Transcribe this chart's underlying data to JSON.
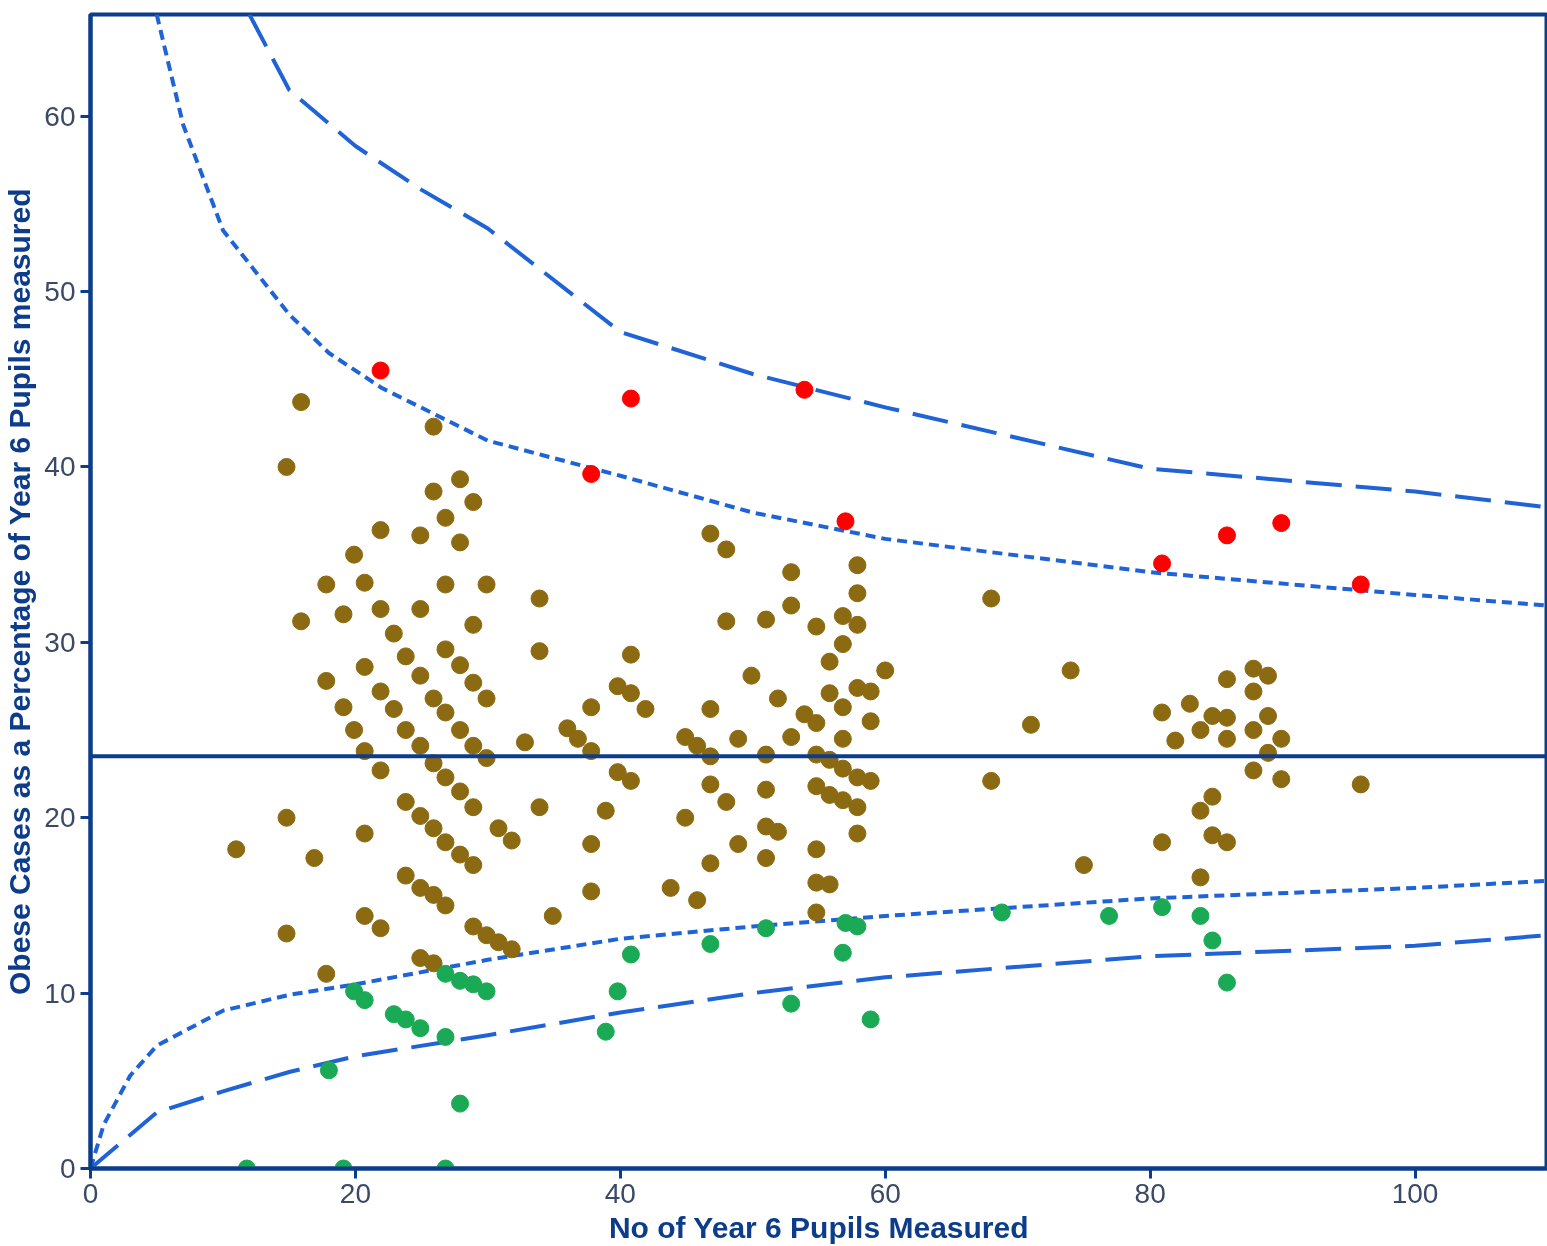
{
  "chart_data": {
    "type": "scatter",
    "xlabel": "No of Year 6 Pupils Measured",
    "ylabel": "Obese Cases as a Percentage of Year 6 Pupils measured",
    "xlim": [
      0,
      110
    ],
    "ylim": [
      0,
      65.8
    ],
    "xticks": [
      0,
      20,
      40,
      60,
      80,
      100
    ],
    "yticks": [
      0,
      10,
      20,
      30,
      40,
      50,
      60
    ],
    "grid": false,
    "marker": "circle",
    "ref_lines": [
      {
        "axis": "y",
        "value": 23.5,
        "color": "#0d3d8a",
        "line_style": "solid"
      }
    ],
    "series": [
      {
        "type": "line",
        "marker": "none",
        "color": "#1f63d6",
        "line_style": "dashed",
        "x": [
          12,
          15,
          20,
          25,
          30,
          40,
          50,
          60,
          80,
          100,
          110
        ],
        "values": [
          65.8,
          61.5,
          58.3,
          55.8,
          53.6,
          47.7,
          45.3,
          43.4,
          39.9,
          38.6,
          37.7
        ]
      },
      {
        "type": "line",
        "marker": "none",
        "color": "#1f63d6",
        "line_style": "dotted",
        "x": [
          5,
          7,
          10,
          15,
          18,
          22,
          30,
          40,
          50,
          60,
          80,
          100,
          110
        ],
        "values": [
          65.8,
          59.5,
          53.5,
          48.7,
          46.5,
          44.5,
          41.5,
          39.5,
          37.4,
          35.9,
          34.0,
          32.7,
          32.1
        ]
      },
      {
        "type": "line",
        "marker": "none",
        "color": "#1f63d6",
        "line_style": "dotted",
        "x": [
          0,
          1,
          3,
          5,
          10,
          15,
          20,
          30,
          40,
          50,
          60,
          80,
          100,
          110
        ],
        "values": [
          0,
          2.5,
          5.3,
          7.0,
          9.0,
          9.9,
          10.5,
          11.9,
          13.1,
          13.8,
          14.4,
          15.4,
          16.0,
          16.4
        ]
      },
      {
        "type": "line",
        "marker": "none",
        "color": "#1f63d6",
        "line_style": "dashed",
        "x": [
          0,
          5,
          10,
          15,
          20,
          30,
          40,
          50,
          60,
          80,
          100,
          110
        ],
        "values": [
          0,
          3.2,
          4.4,
          5.5,
          6.4,
          7.6,
          8.9,
          10.0,
          10.9,
          12.1,
          12.7,
          13.3
        ]
      },
      {
        "color": "#8c6a12",
        "x": [
          11,
          14.8,
          14.8,
          14.8,
          15.9,
          15.9,
          16.9,
          17.8,
          17.8,
          17.8,
          19.1,
          19.1,
          19.9,
          19.9,
          20.7,
          20.7,
          20.7,
          20.7,
          20.7,
          21.9,
          21.9,
          21.9,
          21.9,
          21.9,
          22.9,
          22.9,
          23.8,
          23.8,
          23.8,
          23.8,
          24.9,
          24.9,
          24.9,
          24.9,
          24.9,
          24.9,
          24.9,
          25.9,
          25.9,
          25.9,
          25.9,
          25.9,
          25.9,
          25.9,
          26.8,
          26.8,
          26.8,
          26.8,
          26.8,
          26.8,
          26.8,
          27.9,
          27.9,
          27.9,
          27.9,
          27.9,
          27.9,
          28.9,
          28.9,
          28.9,
          28.9,
          28.9,
          28.9,
          28.9,
          29.9,
          29.9,
          29.9,
          29.9,
          30.8,
          30.8,
          31.8,
          31.8,
          32.8,
          33.9,
          33.9,
          33.9,
          34.9,
          36.0,
          36.8,
          37.8,
          37.8,
          37.8,
          37.8,
          38.9,
          39.8,
          39.8,
          40.8,
          40.8,
          40.8,
          41.9,
          43.8,
          44.9,
          44.9,
          45.8,
          45.8,
          46.8,
          46.8,
          46.8,
          46.8,
          46.8,
          48.0,
          48.0,
          48.0,
          48.9,
          48.9,
          49.9,
          51.0,
          51.0,
          51.0,
          51.0,
          51.0,
          51.9,
          51.9,
          52.9,
          52.9,
          52.9,
          53.9,
          54.8,
          54.8,
          54.8,
          54.8,
          54.8,
          54.8,
          54.8,
          55.8,
          55.8,
          55.8,
          55.8,
          55.8,
          56.8,
          56.8,
          56.8,
          56.8,
          56.8,
          56.8,
          57.9,
          57.9,
          57.9,
          57.9,
          57.9,
          57.9,
          57.9,
          58.9,
          58.9,
          58.9,
          60.0,
          68.0,
          68.0,
          71.0,
          74.0,
          75.0,
          80.9,
          80.9,
          81.9,
          83.0,
          83.8,
          83.8,
          83.8,
          84.7,
          84.7,
          84.7,
          85.8,
          85.8,
          85.8,
          85.8,
          87.8,
          87.8,
          87.8,
          87.8,
          88.9,
          88.9,
          88.9,
          89.9,
          89.9,
          95.9
        ],
        "values": [
          18.2,
          40.0,
          20.0,
          13.4,
          43.7,
          31.2,
          17.7,
          33.3,
          27.8,
          11.1,
          31.6,
          26.3,
          35.0,
          25.0,
          33.4,
          28.6,
          23.8,
          19.1,
          14.4,
          36.4,
          31.9,
          27.2,
          22.7,
          13.7,
          30.5,
          26.2,
          29.2,
          25.0,
          20.9,
          16.7,
          36.1,
          31.9,
          28.1,
          24.1,
          20.1,
          16.0,
          12.0,
          42.3,
          38.6,
          26.8,
          23.1,
          19.4,
          15.6,
          11.7,
          37.1,
          33.3,
          29.6,
          26.0,
          22.3,
          18.6,
          15.0,
          39.3,
          35.7,
          28.7,
          25.0,
          21.5,
          17.9,
          38.0,
          31.0,
          27.7,
          24.1,
          20.6,
          17.3,
          13.8,
          33.3,
          26.8,
          23.4,
          13.3,
          19.4,
          12.9,
          18.7,
          12.5,
          24.3,
          32.5,
          29.5,
          20.6,
          14.4,
          25.1,
          24.5,
          23.8,
          26.3,
          18.5,
          15.8,
          20.4,
          27.5,
          22.6,
          29.3,
          27.1,
          22.1,
          26.2,
          16.0,
          24.6,
          20.0,
          24.1,
          15.3,
          36.2,
          26.2,
          23.5,
          21.9,
          17.4,
          35.3,
          31.2,
          20.9,
          24.5,
          18.5,
          28.1,
          31.3,
          23.6,
          21.6,
          19.5,
          17.7,
          26.8,
          19.2,
          34.0,
          32.1,
          24.6,
          25.9,
          30.9,
          25.4,
          23.6,
          21.8,
          18.2,
          16.3,
          14.6,
          28.9,
          27.1,
          23.3,
          21.3,
          16.2,
          31.5,
          29.9,
          26.3,
          24.5,
          22.8,
          21.0,
          34.4,
          32.8,
          31.0,
          27.4,
          22.3,
          20.6,
          19.1,
          27.2,
          25.5,
          22.1,
          28.4,
          32.5,
          22.1,
          25.3,
          28.4,
          17.3,
          26.0,
          18.6,
          24.4,
          26.5,
          25.0,
          20.4,
          16.6,
          25.8,
          21.2,
          19.0,
          27.9,
          25.7,
          24.5,
          18.6,
          28.5,
          27.2,
          25.0,
          22.7,
          28.1,
          25.8,
          23.7,
          24.5,
          22.2,
          21.9
        ]
      },
      {
        "color": "#ff0000",
        "x": [
          21.9,
          37.8,
          40.8,
          53.9,
          57.0,
          80.9,
          85.8,
          89.9,
          95.9
        ],
        "values": [
          45.5,
          39.6,
          43.9,
          44.4,
          36.9,
          34.5,
          36.1,
          36.8,
          33.3
        ]
      },
      {
        "color": "#1aaa55",
        "x": [
          11.8,
          19.1,
          26.8,
          18.0,
          19.9,
          20.7,
          22.9,
          23.8,
          24.9,
          26.8,
          26.8,
          27.9,
          27.9,
          28.9,
          29.9,
          38.9,
          39.8,
          40.8,
          46.8,
          51.0,
          52.9,
          56.8,
          57.0,
          57.9,
          58.9,
          68.8,
          76.9,
          80.9,
          83.8,
          84.7,
          85.8
        ],
        "values": [
          0,
          0,
          0,
          5.6,
          10.1,
          9.6,
          8.8,
          8.5,
          8.0,
          11.1,
          7.5,
          10.7,
          3.7,
          10.5,
          10.1,
          7.8,
          10.1,
          12.2,
          12.8,
          13.7,
          9.4,
          12.3,
          14.0,
          13.8,
          8.5,
          14.6,
          14.4,
          14.9,
          14.4,
          13.0,
          10.6
        ]
      }
    ]
  }
}
